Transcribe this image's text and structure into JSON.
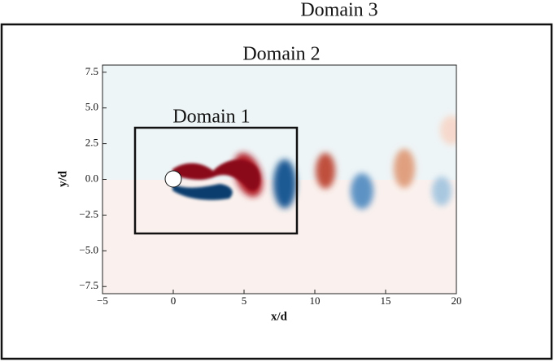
{
  "chart_data": {
    "type": "field",
    "domain_labels": [
      "Domain 1",
      "Domain 2",
      "Domain 3"
    ],
    "xlabel": "x/d",
    "ylabel": "y/d",
    "xlim": [
      -5,
      20
    ],
    "ylim": [
      -8,
      8
    ],
    "xticks": [
      {
        "value": -5,
        "label": "−5"
      },
      0,
      5,
      10,
      15,
      20
    ],
    "yticks": [
      {
        "value": -7.5,
        "label": "−7.5"
      },
      {
        "value": -5,
        "label": "−5.0"
      },
      {
        "value": -2.5,
        "label": "−2.5"
      },
      {
        "value": 0,
        "label": "0.0"
      },
      2.5,
      {
        "value": 5,
        "label": "5.0"
      },
      7.5
    ]
  }
}
